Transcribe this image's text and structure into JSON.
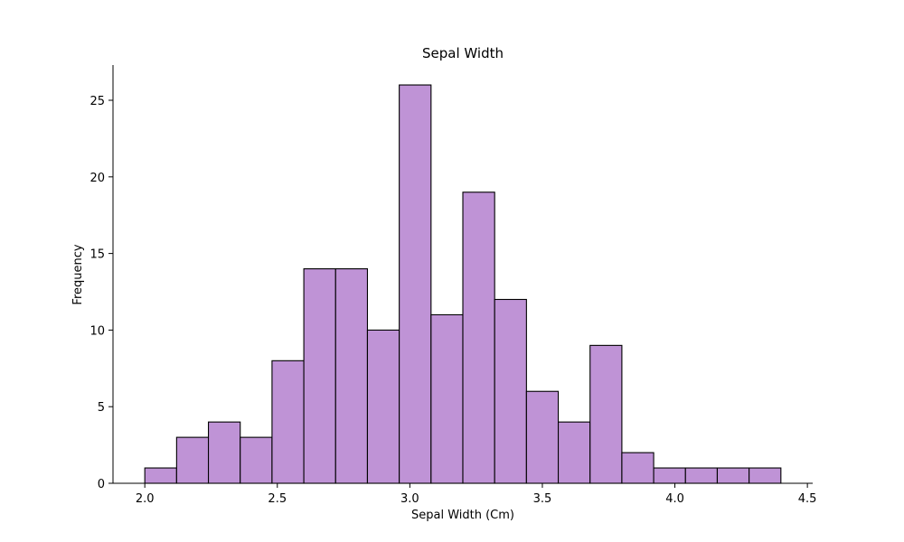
{
  "chart_data": {
    "type": "bar",
    "title": "Sepal Width",
    "xlabel": "Sepal Width (Cm)",
    "ylabel": "Frequency",
    "bin_edges": [
      2.0,
      2.12,
      2.24,
      2.36,
      2.48,
      2.6,
      2.72,
      2.84,
      2.96,
      3.08,
      3.2,
      3.32,
      3.44,
      3.56,
      3.68,
      3.8,
      3.92,
      4.04,
      4.16,
      4.28,
      4.4
    ],
    "values": [
      1,
      3,
      4,
      3,
      8,
      14,
      14,
      10,
      26,
      11,
      19,
      12,
      6,
      4,
      9,
      2,
      1,
      1,
      1,
      1
    ],
    "xlim": [
      1.88,
      4.52
    ],
    "ylim": [
      0,
      27.3
    ],
    "xticks": [
      2.0,
      2.5,
      3.0,
      3.5,
      4.0,
      4.5
    ],
    "xtick_labels": [
      "2.0",
      "2.5",
      "3.0",
      "3.5",
      "4.0",
      "4.5"
    ],
    "yticks": [
      0,
      5,
      10,
      15,
      20,
      25
    ],
    "ytick_labels": [
      "0",
      "5",
      "10",
      "15",
      "20",
      "25"
    ],
    "grid": false,
    "colors": {
      "bar_fill": "#bf93d6",
      "bar_edge": "#000000"
    }
  }
}
